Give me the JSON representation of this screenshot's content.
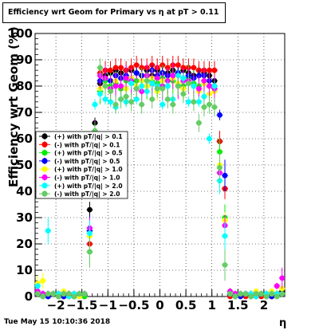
{
  "chart_data": {
    "type": "scatter",
    "title": "Efficiency wrt Geom for Primary vs   η at pT > 0.11",
    "xlabel": "η",
    "ylabel": "Efficiency wrt Geom (%)",
    "footer": "Tue May 15 10:10:36 2018",
    "xlim": [
      -2.4,
      2.4
    ],
    "ylim": [
      0,
      100
    ],
    "x_ticks": [
      -2,
      -1.5,
      -1,
      -0.5,
      0,
      0.5,
      1,
      1.5,
      2
    ],
    "x_tick_labels": [
      "−2",
      "−1.5",
      "−1",
      "−0.5",
      "0",
      "0.5",
      "1",
      "1.5",
      "2"
    ],
    "y_ticks": [
      0,
      10,
      20,
      30,
      40,
      50,
      60,
      70,
      80,
      90,
      100
    ],
    "y_tick_labels": [
      "0",
      "10",
      "20",
      "30",
      "40",
      "50",
      "60",
      "70",
      "80",
      "90",
      "100"
    ],
    "legend_position": "left-middle",
    "x": [
      -2.35,
      -2.25,
      -2.15,
      -2.05,
      -1.95,
      -1.85,
      -1.75,
      -1.65,
      -1.55,
      -1.45,
      -1.35,
      -1.25,
      -1.15,
      -1.05,
      -0.95,
      -0.85,
      -0.75,
      -0.65,
      -0.55,
      -0.45,
      -0.35,
      -0.25,
      -0.15,
      -0.05,
      0.05,
      0.15,
      0.25,
      0.35,
      0.45,
      0.55,
      0.65,
      0.75,
      0.85,
      0.95,
      1.05,
      1.15,
      1.25,
      1.35,
      1.45,
      1.55,
      1.65,
      1.75,
      1.85,
      1.95,
      2.05,
      2.15,
      2.25,
      2.35
    ],
    "series": [
      {
        "name": "(+) with pT/|q| > 0.1",
        "color": "#000000",
        "marker": "circle",
        "values": [
          1,
          1,
          0,
          1,
          1,
          0,
          1,
          0,
          1,
          1,
          33,
          66,
          81,
          84,
          85,
          86,
          85,
          86,
          86,
          85,
          84,
          86,
          84,
          86,
          85,
          85,
          86,
          85,
          86,
          85,
          84,
          86,
          85,
          84,
          82,
          59,
          41,
          1,
          0,
          1,
          1,
          0,
          1,
          1,
          0,
          1,
          1,
          2
        ]
      },
      {
        "name": "(-) with pT/|q| > 0.1",
        "color": "#ff0000",
        "marker": "circle",
        "values": [
          1,
          0,
          1,
          1,
          0,
          1,
          0,
          1,
          1,
          0,
          20,
          60,
          85,
          86,
          86,
          87,
          87,
          86,
          87,
          88,
          87,
          87,
          88,
          87,
          88,
          87,
          88,
          88,
          87,
          87,
          87,
          86,
          86,
          86,
          86,
          59,
          41,
          0,
          1,
          1,
          0,
          1,
          1,
          0,
          1,
          0,
          1,
          1
        ]
      },
      {
        "name": "(+) with pT/|q| > 0.5",
        "color": "#00ee00",
        "marker": "circle",
        "values": [
          1,
          0,
          1,
          1,
          0,
          1,
          1,
          0,
          1,
          0,
          17,
          60,
          78,
          82,
          80,
          81,
          79,
          82,
          81,
          82,
          82,
          80,
          82,
          81,
          83,
          80,
          82,
          81,
          80,
          83,
          81,
          80,
          82,
          80,
          79,
          55,
          30,
          1,
          0,
          1,
          1,
          0,
          1,
          1,
          0,
          1,
          0,
          1
        ]
      },
      {
        "name": "(-) with pT/|q| > 0.5",
        "color": "#0000ff",
        "marker": "circle",
        "values": [
          1,
          1,
          0,
          1,
          1,
          0,
          1,
          1,
          0,
          1,
          25,
          58,
          82,
          83,
          82,
          84,
          83,
          84,
          83,
          85,
          84,
          84,
          86,
          84,
          85,
          84,
          84,
          85,
          83,
          84,
          83,
          84,
          84,
          82,
          80,
          69,
          46,
          1,
          1,
          0,
          1,
          1,
          0,
          1,
          1,
          0,
          1,
          1
        ]
      },
      {
        "name": "(+) with pT/|q| > 1.0",
        "color": "#ffff00",
        "marker": "circle",
        "values": [
          5,
          6,
          1,
          1,
          1,
          2,
          1,
          1,
          0,
          1,
          23,
          44,
          79,
          80,
          78,
          82,
          80,
          79,
          83,
          80,
          82,
          80,
          83,
          78,
          82,
          80,
          83,
          81,
          79,
          82,
          80,
          78,
          81,
          77,
          78,
          50,
          29,
          2,
          1,
          1,
          1,
          1,
          2,
          1,
          1,
          2,
          4,
          3
        ]
      },
      {
        "name": "(-) with pT/|q| > 1.0",
        "color": "#ff00ff",
        "marker": "circle",
        "values": [
          2,
          1,
          1,
          1,
          1,
          1,
          1,
          1,
          1,
          1,
          26,
          62,
          84,
          83,
          79,
          80,
          80,
          83,
          82,
          79,
          78,
          84,
          81,
          83,
          80,
          82,
          84,
          80,
          82,
          82,
          80,
          79,
          82,
          80,
          79,
          47,
          27,
          2,
          1,
          1,
          1,
          1,
          1,
          1,
          1,
          1,
          4,
          7
        ]
      },
      {
        "name": "(+) with pT/|q| > 2.0",
        "color": "#00ffff",
        "marker": "circle",
        "values": [
          4,
          0,
          25,
          1,
          1,
          1,
          0,
          1,
          1,
          1,
          24,
          73,
          77,
          75,
          74,
          72,
          75,
          74,
          81,
          75,
          80,
          78,
          81,
          80,
          73,
          80,
          75,
          84,
          83,
          74,
          80,
          74,
          76,
          60,
          80,
          44,
          23,
          1,
          0,
          1,
          1,
          1,
          0,
          1,
          1,
          1,
          1,
          1
        ]
      },
      {
        "name": "(-) with pT/|q| > 2.0",
        "color": "#66cc66",
        "marker": "circle",
        "values": [
          1,
          0,
          1,
          1,
          0,
          1,
          1,
          0,
          1,
          1,
          17,
          63,
          87,
          80,
          78,
          73,
          75,
          76,
          74,
          79,
          73,
          82,
          75,
          79,
          79,
          75,
          73,
          80,
          77,
          81,
          74,
          66,
          72,
          73,
          72,
          49,
          12,
          1,
          0,
          1,
          1,
          0,
          1,
          1,
          0,
          1,
          0,
          1
        ]
      }
    ]
  }
}
